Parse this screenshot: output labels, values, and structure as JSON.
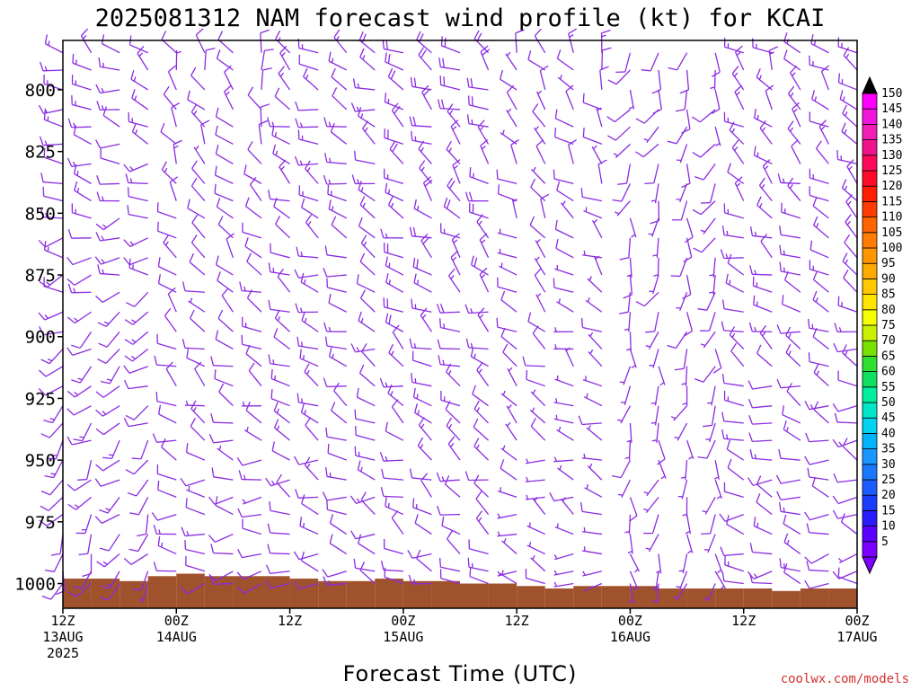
{
  "chart_data": {
    "type": "wind-barb time-height profile",
    "title": "2025081312 NAM forecast wind profile (kt) for KCAI",
    "xlabel": "Forecast Time (UTC)",
    "ylabel": "",
    "credit": "coolwx.com/models",
    "y_axis": {
      "scale": "pressure (hPa), increasing downward",
      "range": [
        780,
        1010
      ],
      "ticks": [
        "800",
        "825",
        "850",
        "875",
        "900",
        "925",
        "950",
        "975",
        "1000"
      ]
    },
    "x_axis": {
      "range": [
        "2025-08-13 12Z",
        "2025-08-17 00Z"
      ],
      "ticks": [
        {
          "time": "2025-08-13 12Z",
          "line1": "12Z",
          "line2": "13AUG",
          "line3": "2025"
        },
        {
          "time": "2025-08-14 00Z",
          "line1": "00Z",
          "line2": "14AUG",
          "line3": ""
        },
        {
          "time": "2025-08-14 12Z",
          "line1": "12Z",
          "line2": "",
          "line3": ""
        },
        {
          "time": "2025-08-15 00Z",
          "line1": "00Z",
          "line2": "15AUG",
          "line3": ""
        },
        {
          "time": "2025-08-15 12Z",
          "line1": "12Z",
          "line2": "",
          "line3": ""
        },
        {
          "time": "2025-08-16 00Z",
          "line1": "00Z",
          "line2": "16AUG",
          "line3": ""
        },
        {
          "time": "2025-08-16 12Z",
          "line1": "12Z",
          "line2": "",
          "line3": ""
        },
        {
          "time": "2025-08-17 00Z",
          "line1": "00Z",
          "line2": "17AUG",
          "line3": ""
        }
      ]
    },
    "colorbar": {
      "unit": "kt",
      "labels": [
        "5",
        "10",
        "15",
        "20",
        "25",
        "30",
        "35",
        "40",
        "45",
        "50",
        "55",
        "60",
        "65",
        "70",
        "75",
        "80",
        "85",
        "90",
        "95",
        "100",
        "105",
        "110",
        "115",
        "120",
        "125",
        "130",
        "135",
        "140",
        "145",
        "150"
      ],
      "colors": [
        "#7a00ff",
        "#5a00ff",
        "#2a1cff",
        "#1a3cff",
        "#1a5cff",
        "#1a78ff",
        "#1a96ff",
        "#00b4ff",
        "#00d2f0",
        "#00e6c8",
        "#00eea0",
        "#10e060",
        "#30e030",
        "#7ae000",
        "#c8f000",
        "#f5ff00",
        "#ffe600",
        "#ffc800",
        "#ffaa00",
        "#ff9600",
        "#ff7d00",
        "#ff6400",
        "#ff3c00",
        "#ff1e00",
        "#ff0a28",
        "#ff0a5a",
        "#f0148c",
        "#f01eb4",
        "#f014dc",
        "#ff00ff"
      ]
    },
    "barb_color": "#8a2be2",
    "terrain_color": "#a0522d",
    "surface_pressure": [
      {
        "time": "2025-08-13 12Z",
        "p": 998
      },
      {
        "time": "2025-08-13 15Z",
        "p": 998
      },
      {
        "time": "2025-08-13 18Z",
        "p": 999
      },
      {
        "time": "2025-08-13 21Z",
        "p": 997
      },
      {
        "time": "2025-08-14 00Z",
        "p": 996
      },
      {
        "time": "2025-08-14 03Z",
        "p": 997
      },
      {
        "time": "2025-08-14 06Z",
        "p": 997
      },
      {
        "time": "2025-08-14 09Z",
        "p": 997
      },
      {
        "time": "2025-08-14 12Z",
        "p": 998
      },
      {
        "time": "2025-08-14 15Z",
        "p": 999
      },
      {
        "time": "2025-08-14 18Z",
        "p": 999
      },
      {
        "time": "2025-08-14 21Z",
        "p": 998
      },
      {
        "time": "2025-08-15 00Z",
        "p": 999
      },
      {
        "time": "2025-08-15 03Z",
        "p": 999
      },
      {
        "time": "2025-08-15 06Z",
        "p": 1000
      },
      {
        "time": "2025-08-15 09Z",
        "p": 1000
      },
      {
        "time": "2025-08-15 12Z",
        "p": 1001
      },
      {
        "time": "2025-08-15 15Z",
        "p": 1002
      },
      {
        "time": "2025-08-15 18Z",
        "p": 1001
      },
      {
        "time": "2025-08-15 21Z",
        "p": 1001
      },
      {
        "time": "2025-08-16 00Z",
        "p": 1001
      },
      {
        "time": "2025-08-16 03Z",
        "p": 1002
      },
      {
        "time": "2025-08-16 06Z",
        "p": 1002
      },
      {
        "time": "2025-08-16 09Z",
        "p": 1002
      },
      {
        "time": "2025-08-16 12Z",
        "p": 1002
      },
      {
        "time": "2025-08-16 15Z",
        "p": 1003
      },
      {
        "time": "2025-08-16 18Z",
        "p": 1002
      },
      {
        "time": "2025-08-16 21Z",
        "p": 1002
      },
      {
        "time": "2025-08-17 00Z",
        "p": 1001
      }
    ],
    "barb_times_per_day": 8,
    "barb_levels": [
      785,
      792,
      800,
      808,
      815,
      822,
      830,
      838,
      845,
      852,
      860,
      868,
      875,
      882,
      890,
      898,
      905,
      912,
      920,
      928,
      935,
      942,
      950,
      958,
      965,
      972,
      980,
      988,
      995,
      1000
    ],
    "wind_regimes": [
      {
        "from": "2025-08-13 12Z",
        "to": "2025-08-14 00Z",
        "upper_dir_deg": 300,
        "upper_kt": 15,
        "lower_dir_deg": 200,
        "lower_kt": 10
      },
      {
        "from": "2025-08-14 00Z",
        "to": "2025-08-14 12Z",
        "upper_dir_deg": 340,
        "upper_kt": 10,
        "lower_dir_deg": 270,
        "lower_kt": 10
      },
      {
        "from": "2025-08-14 12Z",
        "to": "2025-08-15 00Z",
        "upper_dir_deg": 300,
        "upper_kt": 15,
        "lower_dir_deg": 280,
        "lower_kt": 10
      },
      {
        "from": "2025-08-15 00Z",
        "to": "2025-08-15 12Z",
        "upper_dir_deg": 310,
        "upper_kt": 20,
        "lower_dir_deg": 290,
        "lower_kt": 10
      },
      {
        "from": "2025-08-15 12Z",
        "to": "2025-08-16 00Z",
        "upper_dir_deg": 330,
        "upper_kt": 10,
        "lower_dir_deg": 280,
        "lower_kt": 5
      },
      {
        "from": "2025-08-16 00Z",
        "to": "2025-08-16 12Z",
        "upper_dir_deg": 200,
        "upper_kt": 10,
        "lower_dir_deg": 180,
        "lower_kt": 5
      },
      {
        "from": "2025-08-16 12Z",
        "to": "2025-08-17 00Z",
        "upper_dir_deg": 320,
        "upper_kt": 15,
        "lower_dir_deg": 270,
        "lower_kt": 10
      }
    ],
    "grid": false,
    "legend": "colorbar on right"
  }
}
